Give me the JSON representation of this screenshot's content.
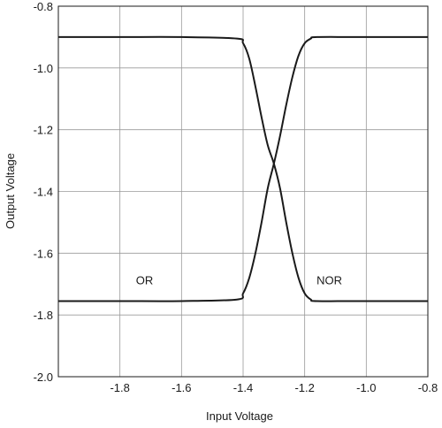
{
  "chart_data": {
    "type": "line",
    "title": "",
    "xlabel": "Input Voltage",
    "ylabel": "Output Voltage",
    "xlim": [
      -2.0,
      -0.8
    ],
    "ylim": [
      -2.0,
      -0.8
    ],
    "x_ticks": [
      -1.8,
      -1.6,
      -1.4,
      -1.2,
      -1.0,
      -0.8
    ],
    "x_tick_labels": [
      "-1.8",
      "-1.6",
      "-1.4",
      "-1.2",
      "-1.0",
      "-0.8"
    ],
    "y_ticks": [
      -0.8,
      -1.0,
      -1.2,
      -1.4,
      -1.6,
      -1.8,
      -2.0
    ],
    "y_tick_labels": [
      "-0.8",
      "-1.0",
      "-1.2",
      "-1.4",
      "-1.6",
      "-1.8",
      "-2.0"
    ],
    "grid": true,
    "series": [
      {
        "name": "OR",
        "x": [
          -2.0,
          -1.8,
          -1.6,
          -1.42,
          -1.4,
          -1.38,
          -1.36,
          -1.34,
          -1.32,
          -1.3,
          -1.28,
          -1.26,
          -1.24,
          -1.22,
          -1.2,
          -1.18,
          -1.16,
          -1.0,
          -0.8
        ],
        "y": [
          -1.755,
          -1.755,
          -1.755,
          -1.75,
          -1.73,
          -1.68,
          -1.6,
          -1.5,
          -1.39,
          -1.31,
          -1.22,
          -1.12,
          -1.03,
          -0.96,
          -0.92,
          -0.905,
          -0.9,
          -0.9,
          -0.9
        ],
        "label_x": -1.72,
        "label_y": -1.7
      },
      {
        "name": "NOR",
        "x": [
          -2.0,
          -1.8,
          -1.6,
          -1.42,
          -1.4,
          -1.38,
          -1.36,
          -1.34,
          -1.32,
          -1.3,
          -1.28,
          -1.26,
          -1.24,
          -1.22,
          -1.2,
          -1.18,
          -1.16,
          -1.0,
          -0.8
        ],
        "y": [
          -0.9,
          -0.9,
          -0.9,
          -0.905,
          -0.92,
          -0.97,
          -1.06,
          -1.16,
          -1.25,
          -1.31,
          -1.39,
          -1.5,
          -1.6,
          -1.68,
          -1.73,
          -1.75,
          -1.755,
          -1.755,
          -1.755
        ],
        "label_x": -1.12,
        "label_y": -1.7
      }
    ]
  }
}
